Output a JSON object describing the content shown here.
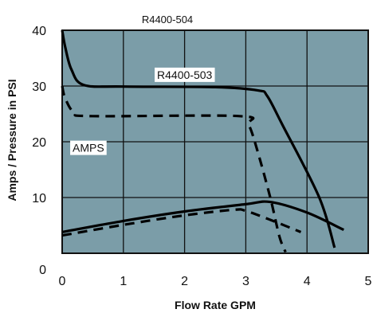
{
  "colors": {
    "plot_background": "#7b9da8",
    "grid": "#111111",
    "curve": "#000000",
    "label_box": "#ffffff"
  },
  "chart_data": {
    "type": "line",
    "title": "R4400-504",
    "xlabel": "Flow Rate GPM",
    "ylabel": "Amps / Pressure in PSI",
    "xlim": [
      0,
      5
    ],
    "ylim": [
      0,
      40
    ],
    "x_ticks": [
      "0",
      "1",
      "2",
      "3",
      "4",
      "5"
    ],
    "y_ticks": [
      "0",
      "10",
      "20",
      "30",
      "40"
    ],
    "grid": true,
    "series": [
      {
        "name": "R4400-503",
        "style": "solid",
        "role": "pressure",
        "points": [
          [
            0,
            40
          ],
          [
            0.05,
            37
          ],
          [
            0.15,
            33
          ],
          [
            0.35,
            30.2
          ],
          [
            1,
            29.9
          ],
          [
            2.5,
            29.8
          ],
          [
            3.2,
            29.2
          ],
          [
            3.35,
            28.2
          ],
          [
            3.6,
            23
          ],
          [
            4.2,
            10
          ],
          [
            4.45,
            1
          ]
        ]
      },
      {
        "name": "AMPS",
        "style": "dashed",
        "role": "pressure",
        "points": [
          [
            0,
            30
          ],
          [
            0.05,
            27.8
          ],
          [
            0.2,
            25.2
          ],
          [
            0.5,
            24.6
          ],
          [
            2.9,
            24.6
          ],
          [
            3.05,
            23
          ],
          [
            3.2,
            18
          ],
          [
            3.4,
            10
          ],
          [
            3.55,
            3
          ],
          [
            3.65,
            0.2
          ]
        ]
      },
      {
        "name": "",
        "style": "solid",
        "role": "amps",
        "points": [
          [
            0,
            3.8
          ],
          [
            1,
            5.8
          ],
          [
            2,
            7.5
          ],
          [
            3,
            8.8
          ],
          [
            3.4,
            9.2
          ],
          [
            4,
            7.3
          ],
          [
            4.6,
            4.2
          ]
        ]
      },
      {
        "name": "",
        "style": "dashed",
        "role": "amps",
        "points": [
          [
            0,
            3.2
          ],
          [
            1,
            5.1
          ],
          [
            2,
            6.8
          ],
          [
            2.8,
            7.8
          ],
          [
            3,
            7.6
          ],
          [
            3.4,
            6
          ],
          [
            3.9,
            3.8
          ]
        ]
      }
    ],
    "annotations": [
      {
        "text": "R4400-503",
        "x": 1.55,
        "y": 31.3
      },
      {
        "text": "AMPS",
        "x": 0.17,
        "y": 18.2
      }
    ]
  }
}
